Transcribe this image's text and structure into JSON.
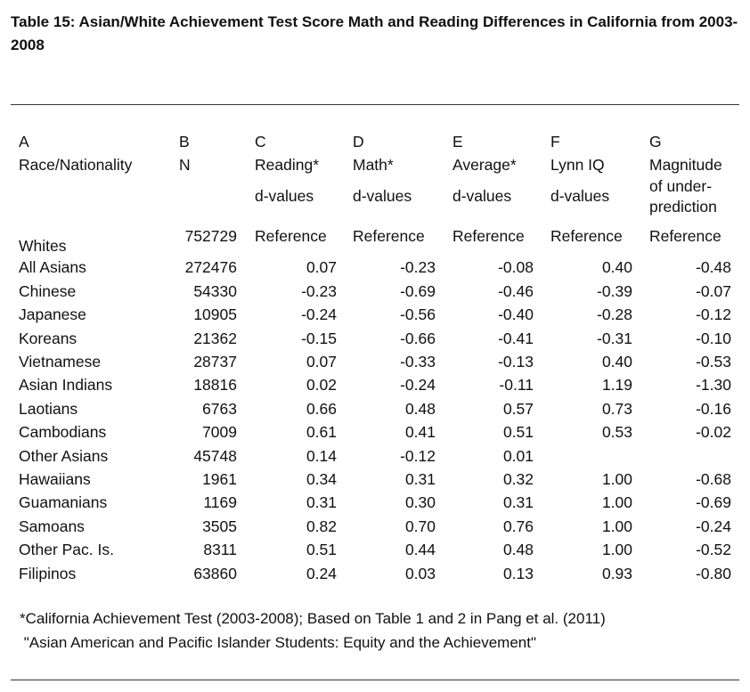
{
  "title": "Table 15: Asian/White Achievement Test Score Math and Reading Differences in California from 2003-2008",
  "columns": [
    {
      "letter": "A",
      "name": "Race/Nationality",
      "sub": ""
    },
    {
      "letter": "B",
      "name": "N",
      "sub": ""
    },
    {
      "letter": "C",
      "name": "Reading*",
      "sub": "d-values"
    },
    {
      "letter": "D",
      "name": "Math*",
      "sub": "d-values"
    },
    {
      "letter": "E",
      "name": "Average*",
      "sub": "d-values"
    },
    {
      "letter": "F",
      "name": "Lynn IQ",
      "sub": "d-values"
    },
    {
      "letter": "G",
      "name": "Magnitude",
      "sub": "of under-\nprediction"
    }
  ],
  "rows": [
    [
      "Whites",
      "752729",
      "Reference",
      "Reference",
      "Reference",
      "Reference",
      "Reference"
    ],
    [
      "All Asians",
      "272476",
      "0.07",
      "-0.23",
      "-0.08",
      "0.40",
      "-0.48"
    ],
    [
      "Chinese",
      "54330",
      "-0.23",
      "-0.69",
      "-0.46",
      "-0.39",
      "-0.07"
    ],
    [
      "Japanese",
      "10905",
      "-0.24",
      "-0.56",
      "-0.40",
      "-0.28",
      "-0.12"
    ],
    [
      "Koreans",
      "21362",
      "-0.15",
      "-0.66",
      "-0.41",
      "-0.31",
      "-0.10"
    ],
    [
      "Vietnamese",
      "28737",
      "0.07",
      "-0.33",
      "-0.13",
      "0.40",
      "-0.53"
    ],
    [
      "Asian Indians",
      "18816",
      "0.02",
      "-0.24",
      "-0.11",
      "1.19",
      "-1.30"
    ],
    [
      "Laotians",
      "6763",
      "0.66",
      "0.48",
      "0.57",
      "0.73",
      "-0.16"
    ],
    [
      "Cambodians",
      "7009",
      "0.61",
      "0.41",
      "0.51",
      "0.53",
      "-0.02"
    ],
    [
      "Other Asians",
      "45748",
      "0.14",
      "-0.12",
      "0.01",
      "",
      ""
    ],
    [
      "Hawaiians",
      "1961",
      "0.34",
      "0.31",
      "0.32",
      "1.00",
      "-0.68"
    ],
    [
      "Guamanians",
      "1169",
      "0.31",
      "0.30",
      "0.31",
      "1.00",
      "-0.69"
    ],
    [
      "Samoans",
      "3505",
      "0.82",
      "0.70",
      "0.76",
      "1.00",
      "-0.24"
    ],
    [
      "Other Pac. Is.",
      "8311",
      "0.51",
      "0.44",
      "0.48",
      "1.00",
      "-0.52"
    ],
    [
      "Filipinos",
      "63860",
      "0.24",
      "0.03",
      "0.13",
      "0.93",
      "-0.80"
    ]
  ],
  "footnote": [
    "*California Achievement Test (2003-2008); Based on Table 1 and 2 in Pang et al. (2011)",
    " \"Asian American and Pacific Islander Students: Equity and the Achievement\""
  ]
}
